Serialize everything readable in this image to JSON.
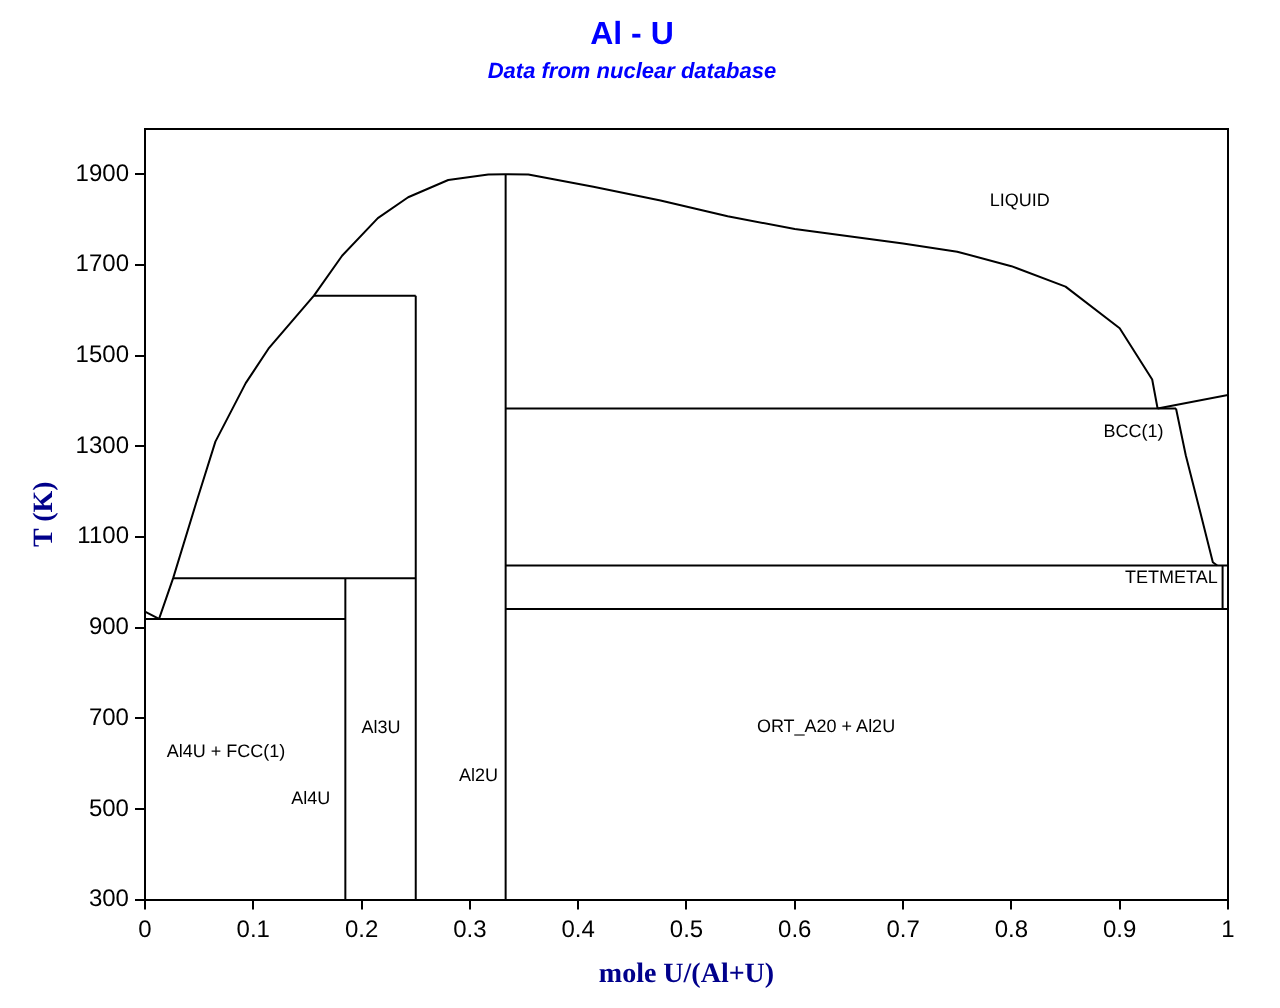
{
  "chart_data": {
    "type": "line",
    "title": "Al - U",
    "subtitle": "Data from nuclear database",
    "xlabel": "mole U/(Al+U)",
    "ylabel": "T (K)",
    "xlim": [
      0,
      1
    ],
    "ylim": [
      300,
      2000
    ],
    "xticks": [
      0,
      0.1,
      0.2,
      0.3,
      0.4,
      0.5,
      0.6,
      0.7,
      0.8,
      0.9,
      1
    ],
    "yticks": [
      300,
      500,
      700,
      900,
      1100,
      1300,
      1500,
      1700,
      1900
    ],
    "grid": false,
    "legend": false,
    "marker": "none",
    "line_style": "solid",
    "series": [
      {
        "color": "#000000",
        "x": [
          0,
          0.013
        ],
        "values": [
          935,
          919
        ]
      },
      {
        "color": "#000000",
        "x": [
          0.013,
          0.026,
          0.047,
          0.065,
          0.093,
          0.114,
          0.156,
          0.182,
          0.215,
          0.243,
          0.28,
          0.317,
          0.333,
          0.354,
          0.414,
          0.476,
          0.538,
          0.6,
          0.7,
          0.75,
          0.8,
          0.85,
          0.9,
          0.93,
          0.935
        ],
        "values": [
          919,
          1009,
          1173,
          1310,
          1439,
          1515,
          1632,
          1720,
          1803,
          1849,
          1887,
          1899,
          1900,
          1899,
          1872,
          1842,
          1807,
          1779,
          1747,
          1729,
          1697,
          1652,
          1560,
          1447,
          1383
        ]
      },
      {
        "color": "#000000",
        "x": [
          0,
          0.185
        ],
        "values": [
          919,
          919
        ]
      },
      {
        "color": "#000000",
        "x": [
          0.026,
          0.25
        ],
        "values": [
          1009,
          1009
        ]
      },
      {
        "color": "#000000",
        "x": [
          0.156,
          0.25
        ],
        "values": [
          1632,
          1632
        ]
      },
      {
        "color": "#000000",
        "x": [
          0.185,
          0.185
        ],
        "values": [
          300,
          1009
        ]
      },
      {
        "color": "#000000",
        "x": [
          0.25,
          0.25
        ],
        "values": [
          300,
          1632
        ]
      },
      {
        "color": "#000000",
        "x": [
          0.333,
          0.333
        ],
        "values": [
          300,
          1900
        ]
      },
      {
        "color": "#000000",
        "x": [
          0.333,
          0.952
        ],
        "values": [
          1383,
          1383
        ]
      },
      {
        "color": "#000000",
        "x": [
          0.935,
          1
        ],
        "values": [
          1383,
          1413
        ]
      },
      {
        "color": "#000000",
        "x": [
          0.952,
          0.961,
          0.974,
          0.986,
          0.99
        ],
        "values": [
          1383,
          1280,
          1158,
          1044,
          1037
        ]
      },
      {
        "color": "#000000",
        "x": [
          0.333,
          1
        ],
        "values": [
          1037,
          1037
        ]
      },
      {
        "color": "#000000",
        "x": [
          0.333,
          1
        ],
        "values": [
          941,
          941
        ]
      },
      {
        "color": "#000000",
        "x": [
          0.995,
          0.995
        ],
        "values": [
          941,
          1037
        ]
      }
    ],
    "annotations": [
      "LIQUID",
      "BCC(1)",
      "TETMETAL",
      "ORT_A20 + Al2U",
      "Al4U + FCC(1)",
      "Al4U",
      "Al3U",
      "Al2U"
    ]
  }
}
